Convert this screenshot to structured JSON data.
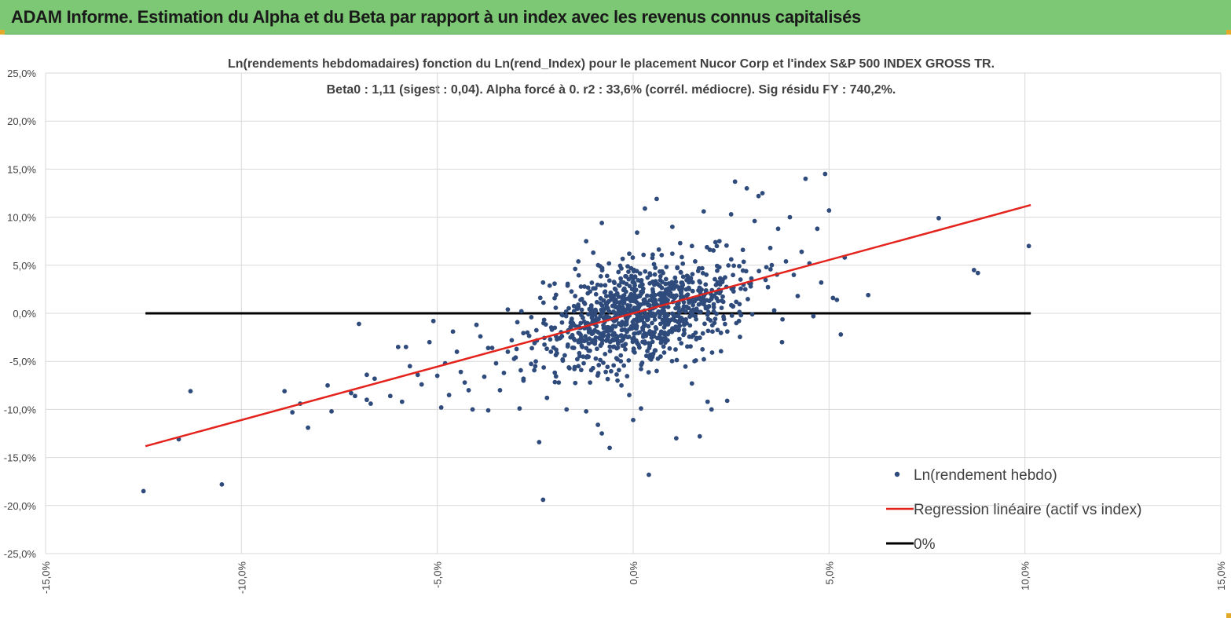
{
  "header": {
    "title": "ADAM Informe. Estimation du Alpha et du Beta par rapport à un index avec les revenus connus capitalisés"
  },
  "chart_data": {
    "type": "scatter",
    "title_lines": [
      "Ln(rendements hebdomadaires) fonction du Ln(rend_Index) pour le placement Nucor Corp et l'index S&P 500 INDEX GROSS TR.",
      "Beta0 : 1,11 (sigest : 0,04). Alpha forcé à 0. r2 : 33,6% (corrél. médiocre). Sig résidu FY : 740,2%."
    ],
    "xlim": [
      -0.15,
      0.15
    ],
    "ylim": [
      -0.25,
      0.25
    ],
    "x_ticks": [
      -0.15,
      -0.1,
      -0.05,
      0.0,
      0.05,
      0.1,
      0.15
    ],
    "y_ticks": [
      0.25,
      0.2,
      0.15,
      0.1,
      0.05,
      0.0,
      -0.05,
      -0.1,
      -0.15,
      -0.2,
      -0.25
    ],
    "x_tick_labels": [
      "-15,0%",
      "-10,0%",
      "-5,0%",
      "0,0%",
      "5,0%",
      "10,0%",
      "15,0%"
    ],
    "y_tick_labels": [
      "25,0%",
      "20,0%",
      "15,0%",
      "10,0%",
      "5,0%",
      "0,0%",
      "-5,0%",
      "-10,0%",
      "-15,0%",
      "-20,0%",
      "-25,0%"
    ],
    "grid": true,
    "legend_position": "bottom-right",
    "series": [
      {
        "name": "Ln(rendement hebdo)",
        "kind": "scatter",
        "color": "#2f4b7c",
        "points": [
          [
            -0.125,
            -0.185
          ],
          [
            -0.116,
            -0.131
          ],
          [
            -0.113,
            -0.081
          ],
          [
            -0.105,
            -0.178
          ],
          [
            -0.089,
            -0.081
          ],
          [
            -0.087,
            -0.103
          ],
          [
            -0.085,
            -0.094
          ],
          [
            -0.083,
            -0.119
          ],
          [
            -0.078,
            -0.075
          ],
          [
            -0.077,
            -0.102
          ],
          [
            -0.072,
            -0.083
          ],
          [
            -0.071,
            -0.086
          ],
          [
            -0.07,
            -0.011
          ],
          [
            -0.068,
            -0.064
          ],
          [
            -0.068,
            -0.09
          ],
          [
            -0.067,
            -0.094
          ],
          [
            -0.066,
            -0.068
          ],
          [
            -0.062,
            -0.086
          ],
          [
            -0.06,
            -0.035
          ],
          [
            -0.059,
            -0.092
          ],
          [
            -0.058,
            -0.035
          ],
          [
            -0.057,
            -0.055
          ],
          [
            -0.055,
            -0.064
          ],
          [
            -0.054,
            -0.074
          ],
          [
            -0.052,
            -0.03
          ],
          [
            -0.051,
            -0.008
          ],
          [
            -0.05,
            -0.065
          ],
          [
            -0.049,
            -0.098
          ],
          [
            -0.048,
            -0.052
          ],
          [
            -0.047,
            -0.085
          ],
          [
            -0.046,
            -0.019
          ],
          [
            -0.045,
            -0.04
          ],
          [
            -0.044,
            -0.061
          ],
          [
            -0.043,
            -0.072
          ],
          [
            -0.042,
            -0.08
          ],
          [
            -0.041,
            -0.1
          ],
          [
            -0.04,
            -0.012
          ],
          [
            -0.039,
            -0.024
          ],
          [
            -0.038,
            -0.066
          ],
          [
            -0.037,
            -0.101
          ],
          [
            -0.036,
            -0.036
          ],
          [
            -0.035,
            -0.052
          ],
          [
            -0.034,
            -0.08
          ],
          [
            -0.033,
            -0.062
          ],
          [
            -0.032,
            0.004
          ],
          [
            -0.031,
            -0.028
          ],
          [
            -0.03,
            -0.046
          ],
          [
            -0.029,
            -0.099
          ],
          [
            -0.028,
            -0.07
          ],
          [
            -0.027,
            -0.02
          ],
          [
            -0.026,
            -0.004
          ],
          [
            -0.025,
            -0.055
          ],
          [
            -0.024,
            -0.134
          ],
          [
            -0.023,
            0.032
          ],
          [
            -0.023,
            -0.194
          ],
          [
            -0.022,
            -0.088
          ],
          [
            -0.021,
            -0.04
          ],
          [
            -0.02,
            -0.015
          ],
          [
            -0.019,
            -0.072
          ],
          [
            -0.018,
            -0.048
          ],
          [
            -0.017,
            -0.1
          ],
          [
            -0.016,
            -0.025
          ],
          [
            -0.015,
            -0.058
          ],
          [
            -0.014,
            0.054
          ],
          [
            -0.013,
            -0.035
          ],
          [
            -0.012,
            -0.102
          ],
          [
            -0.011,
            -0.072
          ],
          [
            -0.01,
            -0.011
          ],
          [
            -0.009,
            -0.116
          ],
          [
            -0.008,
            -0.125
          ],
          [
            -0.007,
            -0.061
          ],
          [
            -0.006,
            -0.14
          ],
          [
            -0.005,
            -0.028
          ],
          [
            -0.004,
            -0.048
          ],
          [
            -0.003,
            -0.075
          ],
          [
            -0.002,
            0.002
          ],
          [
            -0.001,
            -0.085
          ],
          [
            0.0,
            -0.111
          ],
          [
            0.001,
            -0.031
          ],
          [
            0.002,
            -0.058
          ],
          [
            0.003,
            -0.003
          ],
          [
            0.004,
            -0.168
          ],
          [
            0.005,
            0.061
          ],
          [
            0.006,
            -0.06
          ],
          [
            0.007,
            -0.045
          ],
          [
            0.008,
            -0.022
          ],
          [
            0.009,
            0.026
          ],
          [
            0.01,
            0.09
          ],
          [
            0.011,
            -0.13
          ],
          [
            0.012,
            0.073
          ],
          [
            0.013,
            -0.012
          ],
          [
            0.014,
            0.038
          ],
          [
            0.015,
            -0.073
          ],
          [
            0.016,
            -0.049
          ],
          [
            0.017,
            -0.128
          ],
          [
            0.018,
            0.018
          ],
          [
            0.019,
            -0.092
          ],
          [
            0.02,
            -0.1
          ],
          [
            0.021,
            0.074
          ],
          [
            0.022,
            0.048
          ],
          [
            0.023,
            0.012
          ],
          [
            0.024,
            -0.091
          ],
          [
            0.025,
            0.103
          ],
          [
            0.026,
            0.137
          ],
          [
            0.027,
            -0.008
          ],
          [
            0.028,
            0.066
          ],
          [
            0.029,
            0.13
          ],
          [
            0.03,
            0.028
          ],
          [
            0.031,
            0.096
          ],
          [
            0.032,
            0.122
          ],
          [
            0.033,
            0.125
          ],
          [
            0.034,
            0.048
          ],
          [
            0.035,
            0.068
          ],
          [
            0.036,
            0.003
          ],
          [
            0.037,
            0.088
          ],
          [
            0.038,
            -0.03
          ],
          [
            0.039,
            0.054
          ],
          [
            0.04,
            0.1
          ],
          [
            0.041,
            0.04
          ],
          [
            0.042,
            0.018
          ],
          [
            0.043,
            0.064
          ],
          [
            0.044,
            0.14
          ],
          [
            0.045,
            0.052
          ],
          [
            0.046,
            -0.003
          ],
          [
            0.047,
            0.088
          ],
          [
            0.048,
            0.032
          ],
          [
            0.049,
            0.145
          ],
          [
            0.05,
            0.107
          ],
          [
            0.051,
            0.016
          ],
          [
            0.052,
            0.014
          ],
          [
            0.053,
            -0.022
          ],
          [
            0.054,
            0.058
          ],
          [
            0.06,
            0.019
          ],
          [
            0.078,
            0.099
          ],
          [
            0.087,
            0.045
          ],
          [
            0.088,
            0.042
          ],
          [
            0.101,
            0.07
          ],
          [
            0.006,
            0.119
          ],
          [
            0.003,
            0.109
          ],
          [
            -0.008,
            0.094
          ],
          [
            -0.001,
            0.062
          ],
          [
            0.001,
            0.084
          ],
          [
            -0.012,
            0.075
          ],
          [
            0.018,
            0.106
          ],
          [
            0.002,
            -0.099
          ],
          [
            -0.004,
            -0.07
          ],
          [
            0.015,
            0.07
          ],
          [
            0.01,
            0.062
          ],
          [
            -0.028,
            -0.068
          ],
          [
            -0.032,
            -0.04
          ]
        ],
        "cloud_summary": "dense cluster of about 1000 additional weekly observations centred near (0.00, 0.00), spread roughly ±0.03 in x and ±0.05 in y"
      },
      {
        "name": "Regression linéaire (actif vs index)",
        "kind": "line",
        "color": "#e3231c",
        "x": [
          -0.1245,
          0.1015
        ],
        "y": [
          -0.1382,
          0.1127
        ]
      },
      {
        "name": "0%",
        "kind": "line",
        "color": "#000000",
        "x": [
          -0.1245,
          0.1015
        ],
        "y": [
          0.0,
          0.0
        ]
      }
    ]
  }
}
